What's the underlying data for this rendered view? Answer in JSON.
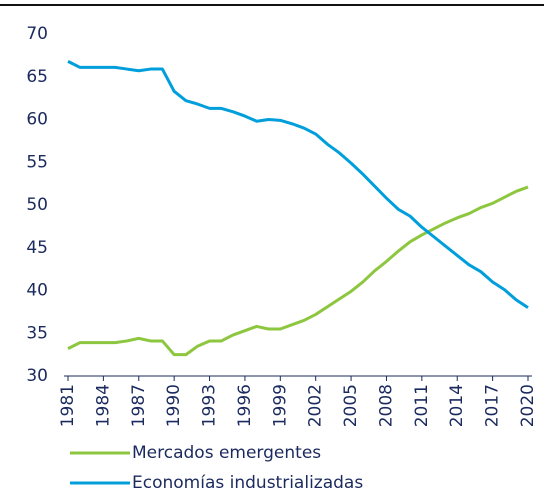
{
  "chart_data": {
    "type": "line",
    "x": [
      1981,
      1982,
      1983,
      1984,
      1985,
      1986,
      1987,
      1988,
      1989,
      1990,
      1991,
      1992,
      1993,
      1994,
      1995,
      1996,
      1997,
      1998,
      1999,
      2000,
      2001,
      2002,
      2003,
      2004,
      2005,
      2006,
      2007,
      2008,
      2009,
      2010,
      2011,
      2012,
      2013,
      2014,
      2015,
      2016,
      2017,
      2018,
      2019,
      2020
    ],
    "series": [
      {
        "name": "Mercados emergentes",
        "color": "#8dc63f",
        "values": [
          33.2,
          33.9,
          33.9,
          33.9,
          33.9,
          34.1,
          34.4,
          34.1,
          34.1,
          32.5,
          32.5,
          33.5,
          34.1,
          34.1,
          34.8,
          35.3,
          35.8,
          35.5,
          35.5,
          36.0,
          36.5,
          37.2,
          38.1,
          39.0,
          39.9,
          41.0,
          42.3,
          43.4,
          44.6,
          45.7,
          46.5,
          47.2,
          47.9,
          48.5,
          49.0,
          49.7,
          50.2,
          50.9,
          51.6,
          52.1
        ]
      },
      {
        "name": "Economías industrializadas",
        "color": "#009fdc",
        "values": [
          66.8,
          66.1,
          66.1,
          66.1,
          66.1,
          65.9,
          65.7,
          65.9,
          65.9,
          63.3,
          62.2,
          61.8,
          61.3,
          61.3,
          60.9,
          60.4,
          59.8,
          60.0,
          59.9,
          59.5,
          59.0,
          58.3,
          57.1,
          56.1,
          54.9,
          53.6,
          52.2,
          50.8,
          49.5,
          48.7,
          47.4,
          46.3,
          45.2,
          44.1,
          43.0,
          42.2,
          41.0,
          40.1,
          38.9,
          38.0
        ]
      }
    ],
    "xlim": [
      1981,
      2020
    ],
    "xticks": [
      1981,
      1984,
      1987,
      1990,
      1993,
      1996,
      1999,
      2002,
      2005,
      2008,
      2011,
      2014,
      2017,
      2020
    ],
    "ylim": [
      30,
      70
    ],
    "yticks": [
      30,
      35,
      40,
      45,
      50,
      55,
      60,
      65,
      70
    ]
  }
}
